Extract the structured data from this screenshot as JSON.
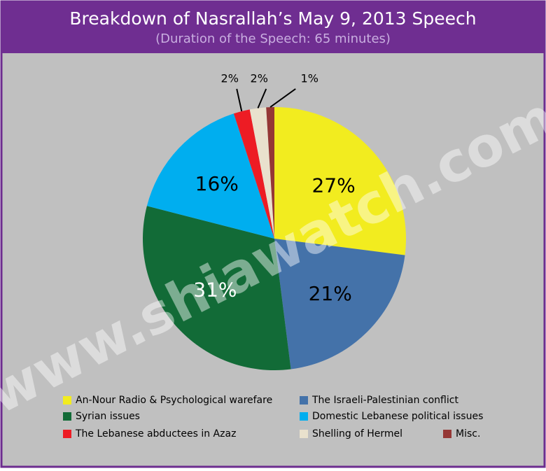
{
  "chart_data": {
    "type": "pie",
    "title": "Breakdown of Nasrallah’s May 9, 2013 Speech",
    "subtitle": "(Duration of the Speech: 65 minutes)",
    "watermark": "www.shiawatch.com",
    "categories": [
      "An-Nour Radio & Psychological warefare",
      "The Israeli-Palestinian conflict",
      "Syrian issues",
      "Domestic Lebanese political issues",
      "The Lebanese abductees in Azaz",
      "Shelling of Hermel",
      "Misc."
    ],
    "values": [
      27,
      21,
      31,
      16,
      2,
      2,
      1
    ],
    "value_labels": [
      "27%",
      "21%",
      "31%",
      "16%",
      "2%",
      "2%",
      "1%"
    ],
    "colors": [
      "#f2ec1f",
      "#4472a9",
      "#126b37",
      "#00aeef",
      "#ed1c24",
      "#e9e1cd",
      "#953735"
    ]
  }
}
